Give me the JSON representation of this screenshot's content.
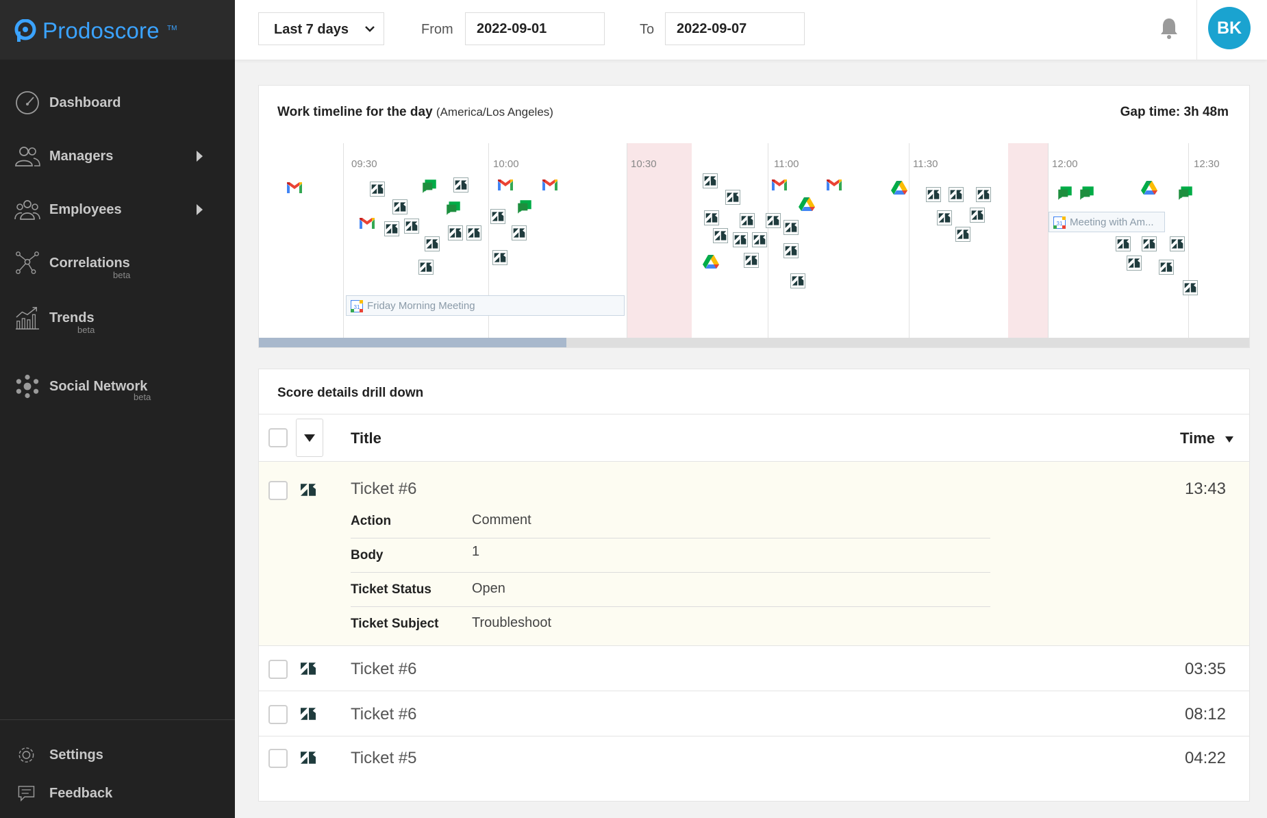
{
  "app": {
    "name": "Prodoscore",
    "tm": "TM"
  },
  "sidebar": {
    "items": [
      {
        "label": "Dashboard",
        "icon": "dashboard-gauge-icon"
      },
      {
        "label": "Managers",
        "icon": "managers-icon"
      },
      {
        "label": "Employees",
        "icon": "employees-icon"
      },
      {
        "label": "Correlations",
        "badge": "beta",
        "icon": "correlations-icon"
      },
      {
        "label": "Trends",
        "badge": "beta",
        "icon": "trends-icon"
      },
      {
        "label": "Social Network",
        "badge": "beta",
        "icon": "social-network-icon"
      },
      {
        "label": "Settings",
        "icon": "gear-icon"
      },
      {
        "label": "Feedback",
        "icon": "feedback-icon"
      }
    ]
  },
  "header": {
    "range_select": "Last 7 days",
    "from_label": "From",
    "from_value": "2022-09-01",
    "to_label": "To",
    "to_value": "2022-09-07",
    "avatar_initials": "BK"
  },
  "timeline": {
    "title": "Work timeline for the day",
    "timezone": "(America/Los Angeles)",
    "gap_time": "Gap time: 3h 48m",
    "ticks": [
      "09:30",
      "10:00",
      "10:30",
      "11:00",
      "11:30",
      "12:00",
      "12:30"
    ],
    "meetings": [
      "Friday Morning Meeting",
      "Meeting with Am..."
    ]
  },
  "details": {
    "title": "Score details drill down",
    "col_title": "Title",
    "col_time": "Time",
    "rows": [
      {
        "title": "Ticket #6",
        "time": "13:43",
        "fields": [
          {
            "key": "Action",
            "value": "Comment"
          },
          {
            "key": "Body",
            "value": "1"
          },
          {
            "key": "Ticket Status",
            "value": "Open"
          },
          {
            "key": "Ticket Subject",
            "value": "Troubleshoot"
          }
        ]
      },
      {
        "title": "Ticket #6",
        "time": "03:35"
      },
      {
        "title": "Ticket #6",
        "time": "08:12"
      },
      {
        "title": "Ticket #5",
        "time": "04:22"
      }
    ]
  }
}
